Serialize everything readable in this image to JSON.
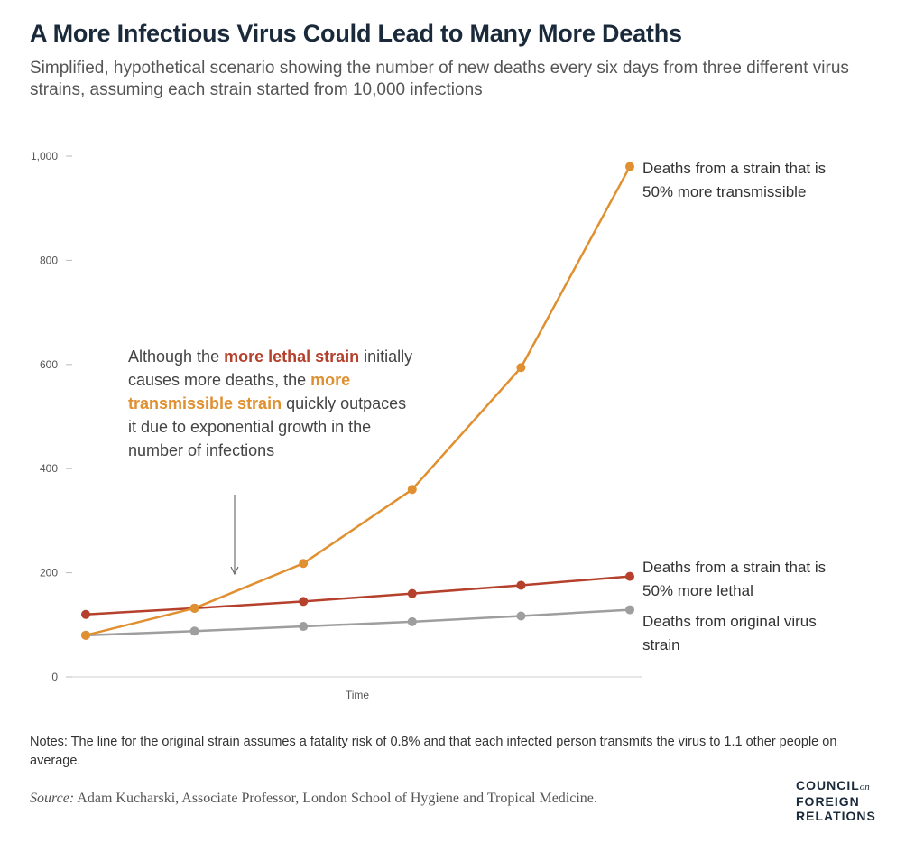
{
  "header": {
    "title": "A More Infectious Virus Could Lead to Many More Deaths",
    "subtitle": "Simplified, hypothetical scenario showing the number of new deaths every six days from three different virus strains, assuming each strain started from 10,000 infections"
  },
  "annotation": {
    "text_before": "Although the ",
    "highlight_lethal": "more lethal strain",
    "text_middle": " initially causes more deaths, the ",
    "highlight_transmissible": "more transmissible strain",
    "text_after": " quickly outpaces it due to exponential growth in the number of infections"
  },
  "labels": {
    "transmissible": "Deaths from a strain that is 50% more transmissible",
    "lethal": "Deaths from a strain that is 50% more lethal",
    "original": "Deaths from original virus strain"
  },
  "footer": {
    "notes": "Notes: The line for the original strain assumes a fatality risk of 0.8% and that each infected person transmits the virus to 1.1 other people on average.",
    "source_label": "Source:",
    "source_text": " Adam Kucharski, Associate Professor, London School of Hygiene and Tropical Medicine.",
    "logo_line1": "COUNCIL",
    "logo_on": "on",
    "logo_line2": "FOREIGN",
    "logo_line3": "RELATIONS"
  },
  "chart_data": {
    "type": "line",
    "title": "A More Infectious Virus Could Lead to Many More Deaths",
    "xlabel": "Time",
    "ylabel": "",
    "ylim": [
      0,
      1000
    ],
    "yticks": [
      0,
      200,
      400,
      600,
      800,
      1000
    ],
    "ytick_labels": [
      "0",
      "200",
      "400",
      "600",
      "800",
      "1,000"
    ],
    "x": [
      1,
      2,
      3,
      4,
      5,
      6
    ],
    "grid": false,
    "series": [
      {
        "name": "Deaths from original virus strain",
        "color": "#9e9e9e",
        "values": [
          80,
          88,
          97,
          106,
          117,
          129
        ]
      },
      {
        "name": "Deaths from a strain that is 50% more lethal",
        "color": "#b5402c",
        "values": [
          120,
          132,
          145,
          160,
          176,
          193
        ]
      },
      {
        "name": "Deaths from a strain that is 50% more transmissible",
        "color": "#e09030",
        "values": [
          80,
          132,
          218,
          360,
          594,
          980
        ]
      }
    ]
  }
}
